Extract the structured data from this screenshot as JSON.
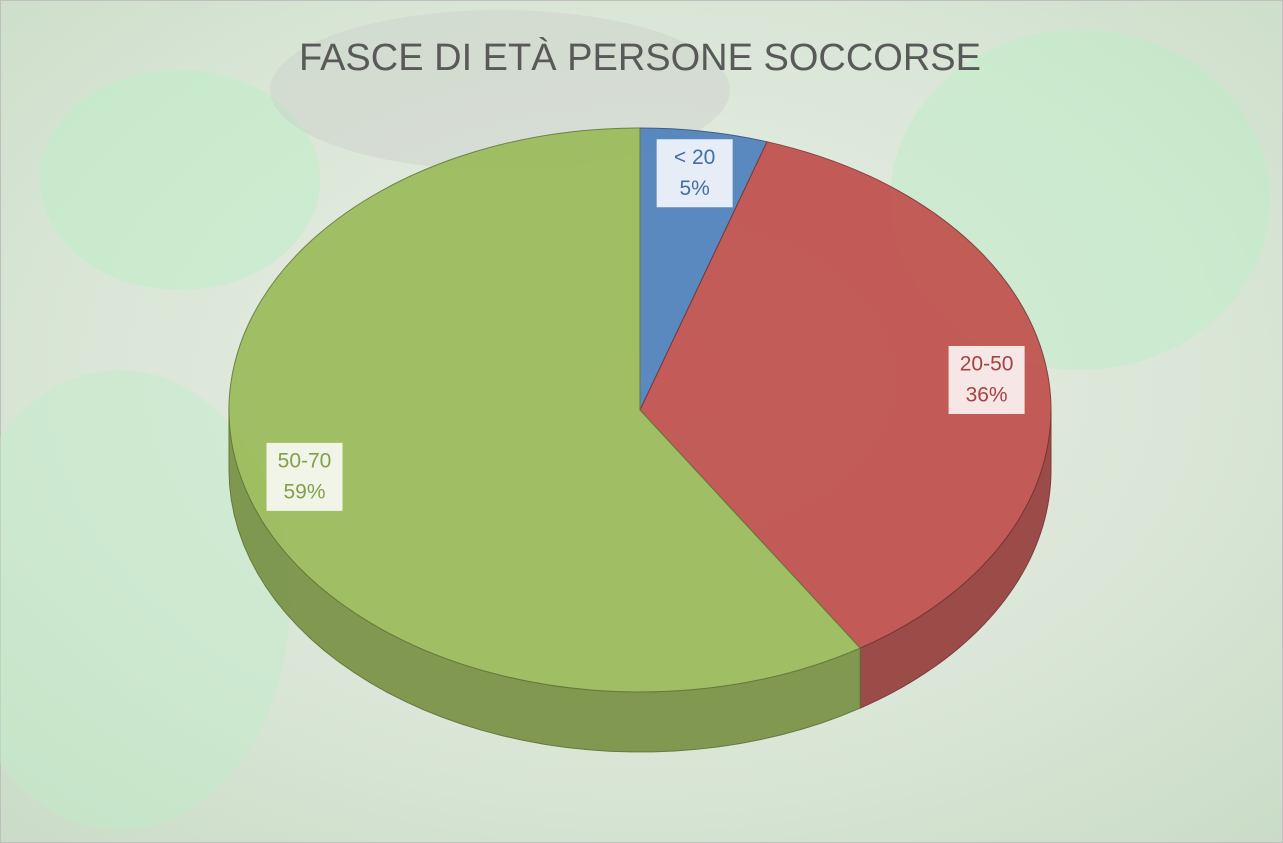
{
  "chart_data": {
    "type": "pie",
    "title": "FASCE DI ETÀ PERSONE SOCCORSE",
    "categories": [
      "< 20",
      "20-50",
      "50-70"
    ],
    "values": [
      5,
      36,
      59
    ],
    "value_labels": [
      "5%",
      "36%",
      "59%"
    ],
    "colors": [
      "#4f81bd",
      "#c0504d",
      "#9bbb59"
    ]
  }
}
